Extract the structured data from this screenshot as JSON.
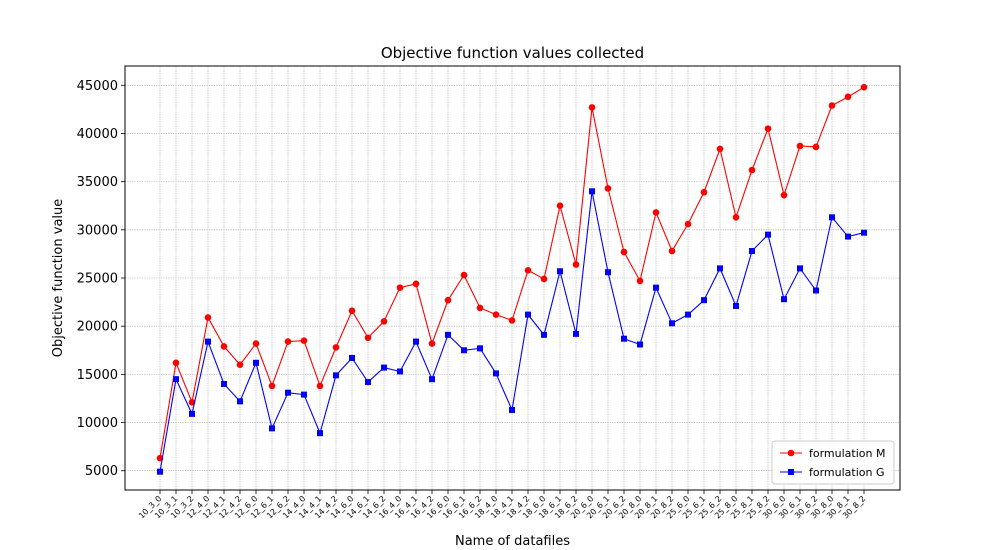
{
  "chart_data": {
    "type": "line",
    "title": "Objective function values collected",
    "xlabel": "Name of datafiles",
    "ylabel": "Objective function value",
    "ylim": [
      3000,
      47000
    ],
    "yticks": [
      5000,
      10000,
      15000,
      20000,
      25000,
      30000,
      35000,
      40000,
      45000
    ],
    "grid": true,
    "legend_position": "bottom-right",
    "categories": [
      "10_3_0",
      "10_3_1",
      "10_3_2",
      "12_4_0",
      "12_4_1",
      "12_4_2",
      "12_6_0",
      "12_6_1",
      "12_6_2",
      "14_4_0",
      "14_4_1",
      "14_4_2",
      "14_6_0",
      "14_6_1",
      "14_6_2",
      "16_4_0",
      "16_4_1",
      "16_4_2",
      "16_6_0",
      "16_6_1",
      "16_6_2",
      "18_4_0",
      "18_4_1",
      "18_4_2",
      "18_6_0",
      "18_6_1",
      "18_6_2",
      "20_6_0",
      "20_6_1",
      "20_6_2",
      "20_8_0",
      "20_8_1",
      "20_8_2",
      "25_6_0",
      "25_6_1",
      "25_6_2",
      "25_8_0",
      "25_8_1",
      "25_8_2",
      "30_6_0",
      "30_6_1",
      "30_6_2",
      "30_8_0",
      "30_8_1",
      "30_8_2"
    ],
    "series": [
      {
        "name": "formulation M",
        "color": "#ff0000",
        "marker": "circle",
        "values": [
          6300,
          16200,
          12100,
          20900,
          17900,
          16000,
          18200,
          13800,
          18400,
          18500,
          13800,
          17800,
          21600,
          18800,
          20500,
          24000,
          24400,
          18200,
          22700,
          25300,
          21900,
          21200,
          20600,
          25800,
          24900,
          32500,
          26400,
          42700,
          34300,
          27700,
          24700,
          31800,
          27800,
          30600,
          33900,
          38400,
          31300,
          36200,
          40500,
          33600,
          38700,
          38600,
          42900,
          43800,
          44800
        ]
      },
      {
        "name": "formulation G",
        "color": "#0000ff",
        "marker": "square",
        "values": [
          4900,
          14500,
          10900,
          18400,
          14000,
          12200,
          16200,
          9400,
          13100,
          12900,
          8900,
          14900,
          16700,
          14200,
          15700,
          15300,
          18400,
          14500,
          19100,
          17500,
          17700,
          15100,
          11300,
          21200,
          19100,
          25700,
          19200,
          34000,
          25600,
          18700,
          18100,
          24000,
          20300,
          21200,
          22700,
          26000,
          22100,
          27800,
          29500,
          22800,
          26000,
          23700,
          31300,
          29300,
          29700
        ]
      }
    ]
  }
}
